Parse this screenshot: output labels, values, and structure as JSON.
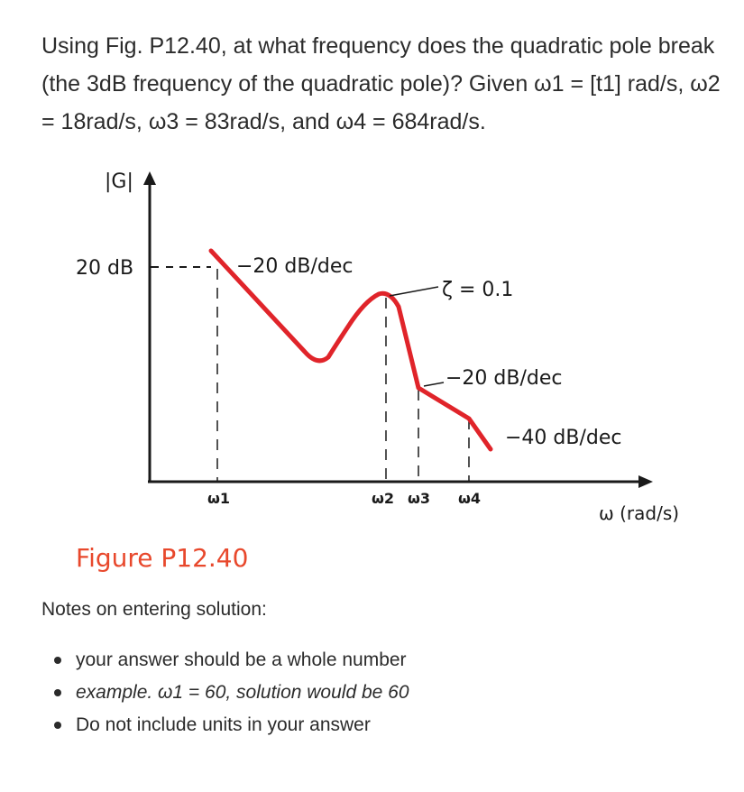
{
  "question": "Using Fig. P12.40, at what frequency does the quadratic pole break (the 3dB frequency of the quadratic pole)? Given ω1 = [t1] rad/s, ω2 = 18rad/s, ω3 = 83rad/s, and ω4 = 684rad/s.",
  "figure": {
    "y_axis_label": "|G|",
    "level_label": "20 dB",
    "slope_1": "−20 dB/dec",
    "damping": "ζ = 0.1",
    "slope_2": "−20 dB/dec",
    "slope_3": "−40 dB/dec",
    "w1": "ω1",
    "w2": "ω2",
    "w3": "ω3",
    "w4": "ω4",
    "x_axis_label": "ω (rad/s)",
    "caption": "Figure P12.40",
    "curve_color": "#e0242a"
  },
  "notes": {
    "heading": "Notes on entering solution:",
    "items": [
      "your answer should be a whole number",
      "example. ω1 = 60, solution would be 60",
      "Do not include units in your answer"
    ]
  }
}
